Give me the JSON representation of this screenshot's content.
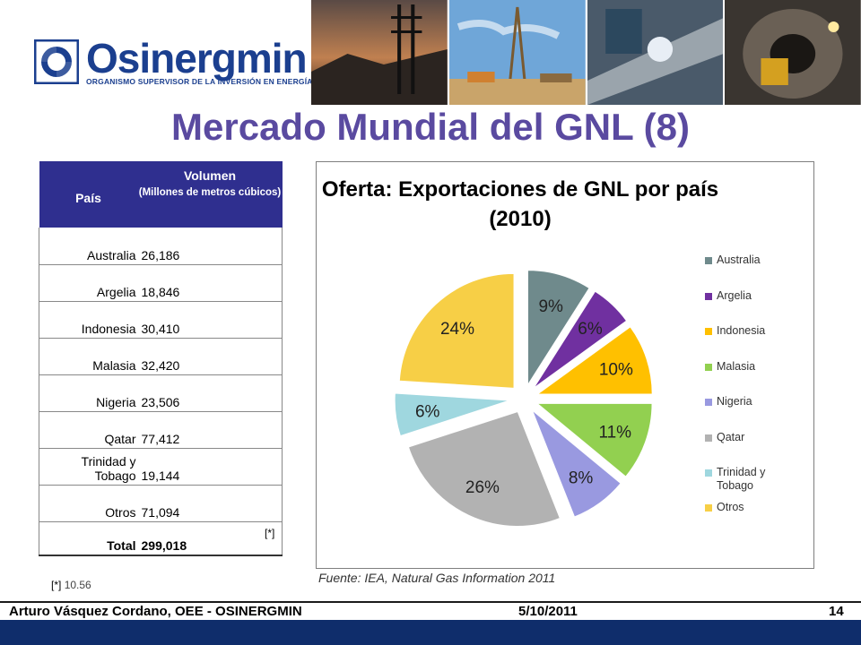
{
  "header": {
    "logo_name": "Osinergmin",
    "logo_subtitle": "ORGANISMO SUPERVISOR DE LA INVERSIÓN EN ENERGÍA Y MINERÍA",
    "brand_color": "#1b3f8f"
  },
  "title": "Mercado Mundial del GNL (8)",
  "table": {
    "headers": {
      "country": "País",
      "volume": "Volumen",
      "volume_unit": "(Millones de metros cúbicos)"
    },
    "rows": [
      {
        "country": "Australia",
        "value": "26,186"
      },
      {
        "country": "Argelia",
        "value": "18,846"
      },
      {
        "country": "Indonesia",
        "value": "30,410"
      },
      {
        "country": "Malasia",
        "value": "32,420"
      },
      {
        "country": "Nigeria",
        "value": "23,506"
      },
      {
        "country": "Qatar",
        "value": "77,412"
      },
      {
        "country": "Trinidad y Tobago",
        "value": "19,144"
      },
      {
        "country": "Otros",
        "value": "71,094"
      }
    ],
    "total": {
      "label": "Total",
      "value": "299,018",
      "note": "[*]"
    }
  },
  "footnote": {
    "marker": "[*]",
    "text": "10.56"
  },
  "chart_data": {
    "type": "pie",
    "title": "Oferta: Exportaciones de GNL por país (2010)",
    "slices": [
      {
        "name": "Australia",
        "value": 9,
        "label": "9%",
        "color": "#6f8a8c"
      },
      {
        "name": "Argelia",
        "value": 6,
        "label": "6%",
        "color": "#7030a0"
      },
      {
        "name": "Indonesia",
        "value": 10,
        "label": "10%",
        "color": "#ffc000"
      },
      {
        "name": "Malasia",
        "value": 11,
        "label": "11%",
        "color": "#92d050"
      },
      {
        "name": "Nigeria",
        "value": 8,
        "label": "8%",
        "color": "#9999e0"
      },
      {
        "name": "Qatar",
        "value": 26,
        "label": "26%",
        "color": "#b2b2b2"
      },
      {
        "name": "Trinidad y Tobago",
        "value": 6,
        "label": "6%",
        "color": "#9fd7df"
      },
      {
        "name": "Otros",
        "value": 24,
        "label": "24%",
        "color": "#f7cf46"
      }
    ],
    "legend_placement": "right"
  },
  "source": "Fuente: IEA, Natural Gas Information 2011",
  "footer": {
    "author": "Arturo Vásquez Cordano, OEE - OSINERGMIN",
    "date": "5/10/2011",
    "page": "14"
  }
}
